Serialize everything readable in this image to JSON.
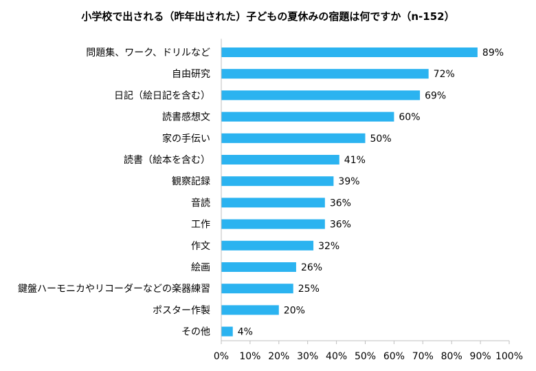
{
  "chart_data": {
    "type": "bar",
    "orientation": "horizontal",
    "title": "小学校で出される（昨年出された）子どもの夏休みの宿題は何ですか（n-152）",
    "categories": [
      "問題集、ワーク、ドリルなど",
      "自由研究",
      "日記（絵日記を含む）",
      "読書感想文",
      "家の手伝い",
      "読書（絵本を含む）",
      "観察記録",
      "音読",
      "工作",
      "作文",
      "絵画",
      "鍵盤ハーモニカやリコーダーなどの楽器練習",
      "ポスター作製",
      "その他"
    ],
    "values": [
      89,
      72,
      69,
      60,
      50,
      41,
      39,
      36,
      36,
      32,
      26,
      25,
      20,
      4
    ],
    "value_labels": [
      "89%",
      "72%",
      "69%",
      "60%",
      "50%",
      "41%",
      "39%",
      "36%",
      "36%",
      "32%",
      "26%",
      "25%",
      "20%",
      "4%"
    ],
    "xlim": [
      0,
      100
    ],
    "x_ticks": [
      "0%",
      "10%",
      "20%",
      "30%",
      "40%",
      "50%",
      "60%",
      "70%",
      "80%",
      "90%",
      "100%"
    ],
    "xlabel": "",
    "ylabel": "",
    "grid": false,
    "bar_color": "#2bb3f0"
  }
}
